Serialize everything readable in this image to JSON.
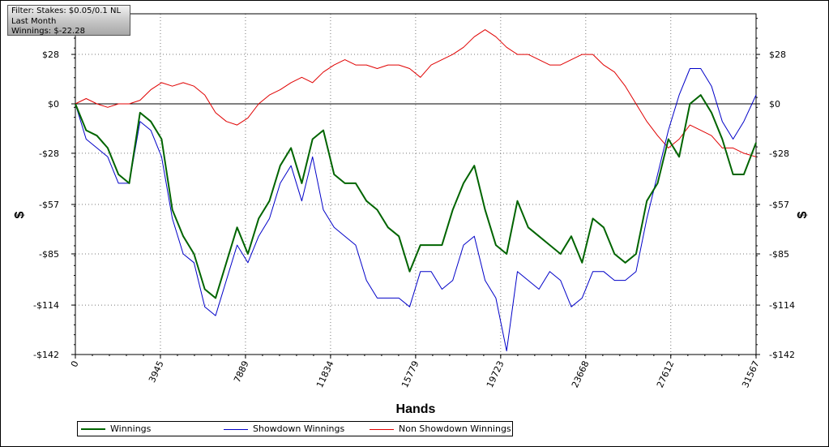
{
  "filter_box": {
    "line1": "Filter: Stakes: $0.05/0.1 NL",
    "line2": "Last Month",
    "line3": "Winnings: $-22.28"
  },
  "chart_data": {
    "type": "line",
    "xlabel": "Hands",
    "ylabel": "$",
    "ylabel_right": "$",
    "xlim": [
      0,
      31567
    ],
    "ylim": [
      -142,
      51
    ],
    "x_ticks": [
      0,
      3945,
      7889,
      11834,
      15779,
      19723,
      23668,
      27612,
      31567
    ],
    "y_ticks": [
      28,
      0,
      -28,
      -57,
      -85,
      -114,
      -142
    ],
    "y_tick_labels": [
      "$28",
      "$0",
      "-$28",
      "-$57",
      "-$85",
      "-$114",
      "-$142"
    ],
    "grid": true,
    "legend_position": "bottom",
    "x": [
      0,
      500,
      1000,
      1500,
      2000,
      2500,
      3000,
      3500,
      4000,
      4500,
      5000,
      5500,
      6000,
      6500,
      7000,
      7500,
      8000,
      8500,
      9000,
      9500,
      10000,
      10500,
      11000,
      11500,
      12000,
      12500,
      13000,
      13500,
      14000,
      14500,
      15000,
      15500,
      16000,
      16500,
      17000,
      17500,
      18000,
      18500,
      19000,
      19500,
      20000,
      20500,
      21000,
      21500,
      22000,
      22500,
      23000,
      23500,
      24000,
      24500,
      25000,
      25500,
      26000,
      26500,
      27000,
      27500,
      28000,
      28500,
      29000,
      29500,
      30000,
      30500,
      31000,
      31567
    ],
    "series": [
      {
        "name": "Winnings",
        "color": "#006400",
        "values": [
          0,
          -15,
          -18,
          -25,
          -40,
          -45,
          -5,
          -10,
          -20,
          -60,
          -75,
          -85,
          -105,
          -110,
          -90,
          -70,
          -85,
          -65,
          -55,
          -35,
          -25,
          -45,
          -20,
          -15,
          -40,
          -45,
          -45,
          -55,
          -60,
          -70,
          -75,
          -95,
          -80,
          -80,
          -80,
          -60,
          -45,
          -35,
          -60,
          -80,
          -85,
          -55,
          -70,
          -75,
          -80,
          -85,
          -75,
          -90,
          -65,
          -70,
          -85,
          -90,
          -85,
          -55,
          -45,
          -20,
          -30,
          0,
          5,
          -5,
          -20,
          -40,
          -40,
          -22
        ]
      },
      {
        "name": "Showdown Winnings",
        "color": "#0000c8",
        "values": [
          0,
          -20,
          -25,
          -30,
          -45,
          -45,
          -10,
          -15,
          -30,
          -65,
          -85,
          -90,
          -115,
          -120,
          -100,
          -80,
          -90,
          -75,
          -65,
          -45,
          -35,
          -55,
          -30,
          -60,
          -70,
          -75,
          -80,
          -100,
          -110,
          -110,
          -110,
          -115,
          -95,
          -95,
          -105,
          -100,
          -80,
          -75,
          -100,
          -110,
          -140,
          -95,
          -100,
          -105,
          -95,
          -100,
          -115,
          -110,
          -95,
          -95,
          -100,
          -100,
          -95,
          -65,
          -40,
          -15,
          5,
          20,
          20,
          10,
          -10,
          -20,
          -10,
          5
        ]
      },
      {
        "name": "Non Showdown Winnings",
        "color": "#e00000",
        "values": [
          0,
          3,
          0,
          -2,
          0,
          0,
          2,
          8,
          12,
          10,
          12,
          10,
          5,
          -5,
          -10,
          -12,
          -8,
          0,
          5,
          8,
          12,
          15,
          12,
          18,
          22,
          25,
          22,
          22,
          20,
          22,
          22,
          20,
          15,
          22,
          25,
          28,
          32,
          38,
          42,
          38,
          32,
          28,
          28,
          25,
          22,
          22,
          25,
          28,
          28,
          22,
          18,
          10,
          0,
          -10,
          -18,
          -25,
          -20,
          -12,
          -15,
          -18,
          -25,
          -25,
          -28,
          -30
        ]
      }
    ]
  }
}
